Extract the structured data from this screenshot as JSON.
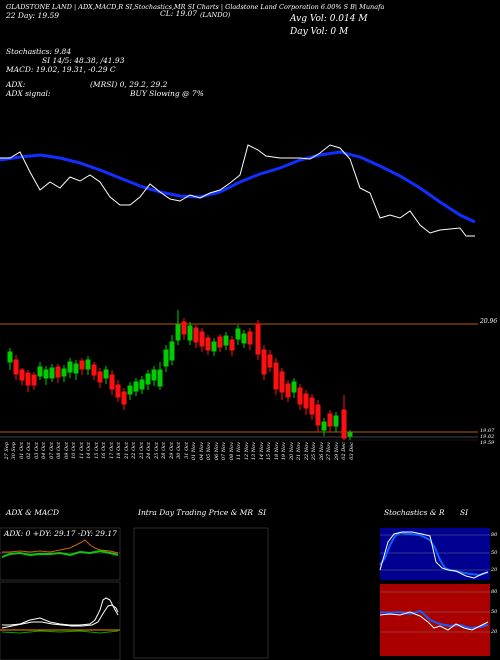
{
  "header": {
    "line1_left": "GLADSTONE LAND | ADX,MACD,R SI,Stochastics,MR SI Charts | Gladstone Land Corporation 6.00% S B| Munafa",
    "ticker_label": "(LANDO)",
    "line2_left": "CL: 19.07",
    "line2_extra": "22 Day: 19.59",
    "avg_vol": "Avg Vol: 0.014  M",
    "day_vol": "Day Vol: 0  M"
  },
  "indicators": {
    "stochastics": "Stochastics: 9.84",
    "si": "SI 14/5: 48.38, /41.93",
    "macd": "MACD: 19.02, 19.31, -0.29 C",
    "adx": "ADX:",
    "mrsi": "(MRSI) 0, 29.2, 29.2",
    "adx_signal": "ADX signal:",
    "buy": "BUY Slowing @ 7%"
  },
  "price_labels": {
    "top": "20.96",
    "mid1": "19.07",
    "mid2": "19.02",
    "mid3": "19.59"
  },
  "dates": [
    "27 Sep",
    "30 Sep",
    "01 Oct",
    "02 Oct",
    "03 Oct",
    "04 Oct",
    "07 Oct",
    "08 Oct",
    "09 Oct",
    "10 Oct",
    "11 Oct",
    "14 Oct",
    "15 Oct",
    "16 Oct",
    "17 Oct",
    "18 Oct",
    "21 Oct",
    "22 Oct",
    "23 Oct",
    "24 Oct",
    "25 Oct",
    "28 Oct",
    "29 Oct",
    "30 Oct",
    "31 Oct",
    "01 Nov",
    "04 Nov",
    "05 Nov",
    "06 Nov",
    "07 Nov",
    "08 Nov",
    "11 Nov",
    "12 Nov",
    "13 Nov",
    "14 Nov",
    "15 Nov",
    "18 Nov",
    "19 Nov",
    "20 Nov",
    "21 Nov",
    "22 Nov",
    "25 Nov",
    "26 Nov",
    "27 Nov",
    "29 Nov",
    "02 Dec",
    "03 Dec"
  ],
  "panels": {
    "adx_title": "ADX  & MACD",
    "adx_values": "ADX: 0  +DY: 29.17  -DY: 29.17",
    "intraday_title": "Intra Day Trading Price  & MR",
    "intraday_si": "SI",
    "stoch_title": "Stochastics & R",
    "stoch_si": "SI",
    "stoch_levels": [
      "80",
      "50",
      "20"
    ],
    "rsi_levels": [
      "80",
      "50",
      "20"
    ]
  },
  "colors": {
    "ma_line": "#1030ff",
    "up_candle": "#00cc00",
    "down_candle": "#ff1010",
    "band": "#b06000",
    "rsi_bg": "#aa0000",
    "stoch_bg": "#000090"
  }
}
